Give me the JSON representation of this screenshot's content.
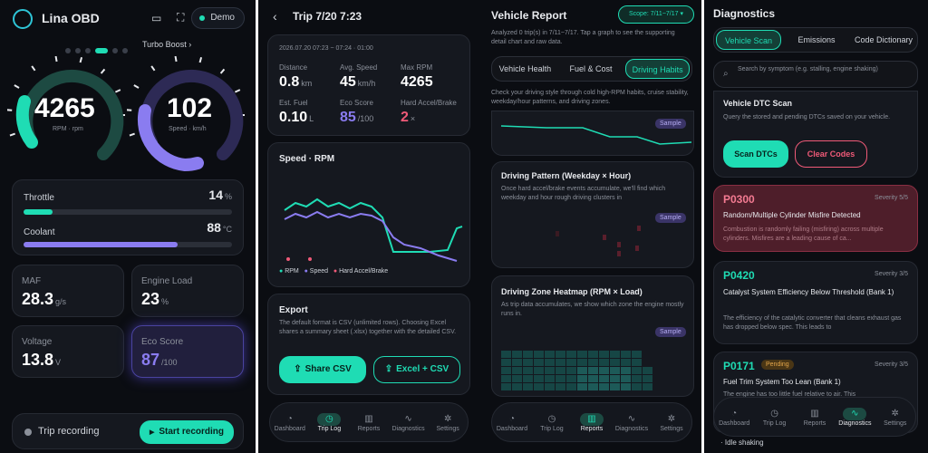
{
  "s1": {
    "app_title": "Lina OBD",
    "demo_label": "Demo",
    "turbo_label": "Turbo Boost",
    "rpm_value": "4265",
    "rpm_unit": "RPM · rpm",
    "speed_value": "102",
    "speed_unit": "Speed · km/h",
    "throttle_label": "Throttle",
    "throttle_value": "14",
    "throttle_unit": "%",
    "throttle_level": 0.14,
    "coolant_label": "Coolant",
    "coolant_value": "88",
    "coolant_unit": "°C",
    "coolant_level": 0.74,
    "maf_label": "MAF",
    "maf_value": "28.3",
    "maf_unit": "g/s",
    "load_label": "Engine Load",
    "load_value": "23",
    "load_unit": "%",
    "voltage_label": "Voltage",
    "voltage_value": "13.8",
    "voltage_unit": "V",
    "eco_label": "Eco Score",
    "eco_value": "87",
    "eco_unit": "/100",
    "trip_label": "Trip recording",
    "start_label": "Start recording"
  },
  "s2": {
    "title": "Trip 7/20 7:23",
    "timestamp": "2026.07.20 07:23 ~ 07:24 · 01:00",
    "distance_label": "Distance",
    "distance_value": "0.8",
    "distance_unit": "km",
    "avgspeed_label": "Avg. Speed",
    "avgspeed_value": "45",
    "avgspeed_unit": "km/h",
    "maxrpm_label": "Max RPM",
    "maxrpm_value": "4265",
    "fuel_label": "Est. Fuel",
    "fuel_value": "0.10",
    "fuel_unit": "L",
    "eco_label": "Eco Score",
    "eco_value": "85",
    "eco_unit": "/100",
    "hard_label": "Hard Accel/Brake",
    "hard_value": "2",
    "hard_unit": "×",
    "chart_title": "Speed · RPM",
    "legend": [
      "RPM",
      "Speed",
      "Hard Accel/Brake"
    ],
    "export_title": "Export",
    "export_desc": "The default format is CSV (unlimited rows). Choosing Excel shares a summary sheet (.xlsx) together with the detailed CSV.",
    "share_csv": "Share CSV",
    "excel_csv": "Excel + CSV",
    "colors": {
      "rpm": "#1fdcb4",
      "speed": "#8a7cf0",
      "hard": "#f05a78"
    }
  },
  "s3": {
    "title": "Vehicle Report",
    "scope": "Scope: 7/11~7/17",
    "desc": "Analyzed 0 trip(s) in 7/11~7/17. Tap a graph to see the supporting detail chart and raw data.",
    "tabs": [
      "Vehicle Health",
      "Fuel & Cost",
      "Driving Habits"
    ],
    "habit_desc": "Check your driving style through cold high-RPM habits, cruise stability, weekday/hour patterns, and driving zones.",
    "sample": "Sample",
    "pattern_title": "Driving Pattern (Weekday × Hour)",
    "pattern_desc": "Once hard accel/brake events accumulate, we'll find which weekday and hour rough driving clusters in",
    "heat_title": "Driving Zone Heatmap (RPM × Load)",
    "heat_desc": "As trip data accumulates, we show which zone the engine mostly runs in."
  },
  "s4": {
    "title": "Diagnostics",
    "tabs": [
      "Vehicle Scan",
      "Emissions",
      "Code Dictionary"
    ],
    "search_placeholder": "Search by symptom (e.g. stalling, engine shaking)",
    "scan_title": "Vehicle DTC Scan",
    "scan_desc": "Query the stored and pending DTCs saved on your vehicle.",
    "scan_btn": "Scan DTCs",
    "clear_btn": "Clear Codes",
    "codes": [
      {
        "code": "P0300",
        "severity": "Severity 5/5",
        "title": "Random/Multiple Cylinder Misfire Detected",
        "desc": "Combustion is randomly failing (misfiring) across multiple cylinders. Misfires are a leading cause of ca..."
      },
      {
        "code": "P0420",
        "severity": "Severity 3/5",
        "title": "Catalyst System Efficiency Below Threshold (Bank 1)",
        "desc": "The efficiency of the catalytic converter that cleans exhaust gas has dropped below spec. This leads to"
      },
      {
        "code": "P0171",
        "pending": "Pending",
        "severity": "Severity 3/5",
        "title": "Fuel Trim System Too Lean (Bank 1)",
        "desc": "The engine has too little fuel relative to air. This"
      }
    ],
    "extra": "· Idle shaking"
  },
  "nav": [
    "Dashboard",
    "Trip Log",
    "Reports",
    "Diagnostics",
    "Settings"
  ],
  "icons": {
    "dashboard": "gauge-icon",
    "trip": "clock-icon",
    "reports": "bar-chart-icon",
    "diagnostics": "pulse-icon",
    "settings": "gear-icon"
  }
}
